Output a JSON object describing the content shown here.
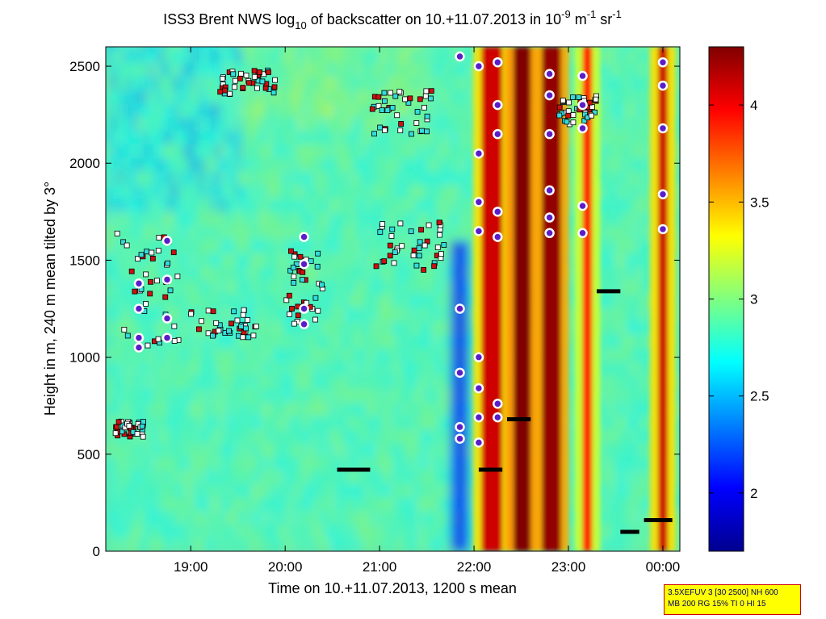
{
  "title": {
    "prefix": "ISS3 Brent NWS log",
    "sub": "10",
    "mid": " of backscatter on 10.+11.07.2013 in 10",
    "sup1": "-9",
    "unit_m": " m",
    "sup2": "-1",
    "unit_sr": " sr",
    "sup3": "-1"
  },
  "info_box": {
    "line1": "3.5XEFUV 3 [30 2500] NH 600",
    "line2": "MB 200 RG 15% TI 0 HI 15"
  },
  "colors": {
    "background_field": "#69e0a8",
    "colormap": "jet",
    "marker_dot_fill": "#5a1ec8",
    "marker_dot_ring": "#ffffff",
    "square_red": "#cc1111",
    "square_white": "#ffffff",
    "square_cyan": "#33dddd"
  },
  "chart_data": {
    "type": "heatmap",
    "title": "ISS3 Brent NWS log10 of backscatter on 10.+11.07.2013 in 10^-9 m^-1 sr^-1",
    "xlabel": "Time on 10.+11.07.2013, 1200 s mean",
    "ylabel": "Height in m, 240 m mean tilted by 3°",
    "x_ticks": [
      "19:00",
      "20:00",
      "21:00",
      "22:00",
      "23:00",
      "00:00"
    ],
    "x_tick_hours": [
      19,
      20,
      21,
      22,
      23,
      24
    ],
    "xlim_hours": [
      18.1,
      24.18
    ],
    "y_ticks": [
      "0",
      "500",
      "1000",
      "1500",
      "2000",
      "2500"
    ],
    "y_tick_values": [
      0,
      500,
      1000,
      1500,
      2000,
      2500
    ],
    "ylim": [
      0,
      2600
    ],
    "colorbar": {
      "ticks": [
        "2",
        "2.5",
        "3",
        "3.5",
        "4"
      ],
      "tick_values": [
        2,
        2.5,
        3,
        3.5,
        4
      ],
      "clim": [
        1.7,
        4.3
      ]
    },
    "high_backscatter_bands": [
      {
        "t_start": 22.08,
        "t_end": 22.3,
        "h_top": 2600,
        "value": 4.1
      },
      {
        "t_start": 22.42,
        "t_end": 22.6,
        "h_top": 2600,
        "value": 4.3
      },
      {
        "t_start": 22.72,
        "t_end": 22.92,
        "h_top": 2600,
        "value": 4.25
      },
      {
        "t_start": 23.15,
        "t_end": 23.25,
        "h_top": 2600,
        "value": 3.9
      },
      {
        "t_start": 23.95,
        "t_end": 24.05,
        "h_top": 2600,
        "value": 4.1
      }
    ],
    "low_backscatter_region": {
      "t_start": 21.75,
      "t_end": 21.95,
      "h_top": 1600,
      "value": 2.1
    },
    "dot_markers_summary": [
      {
        "t": 18.45,
        "heights": [
          1380,
          1250,
          1100,
          1050
        ]
      },
      {
        "t": 18.75,
        "heights": [
          1600,
          1400,
          1200,
          1100
        ]
      },
      {
        "t": 20.2,
        "heights": [
          1620,
          1480,
          1250,
          1170
        ]
      },
      {
        "t": 21.85,
        "heights": [
          2550,
          1250,
          920,
          640,
          580
        ]
      },
      {
        "t": 22.05,
        "heights": [
          2500,
          2050,
          1800,
          1650,
          1000,
          840,
          690,
          560
        ]
      },
      {
        "t": 22.25,
        "heights": [
          2520,
          2300,
          2150,
          1750,
          1620,
          760,
          690
        ]
      },
      {
        "t": 22.8,
        "heights": [
          2460,
          2350,
          2150,
          1860,
          1720,
          1640
        ]
      },
      {
        "t": 23.15,
        "heights": [
          2450,
          2300,
          2180,
          1780,
          1640
        ]
      },
      {
        "t": 24.0,
        "heights": [
          2520,
          2400,
          2180,
          1840,
          1660
        ]
      }
    ],
    "black_line_segments": [
      {
        "t_start": 20.55,
        "t_end": 20.9,
        "h": 420
      },
      {
        "t_start": 22.05,
        "t_end": 22.3,
        "h": 420
      },
      {
        "t_start": 22.35,
        "t_end": 22.6,
        "h": 680
      },
      {
        "t_start": 23.3,
        "t_end": 23.55,
        "h": 1340
      },
      {
        "t_start": 23.55,
        "t_end": 23.75,
        "h": 100
      },
      {
        "t_start": 23.8,
        "t_end": 24.1,
        "h": 160
      }
    ]
  }
}
